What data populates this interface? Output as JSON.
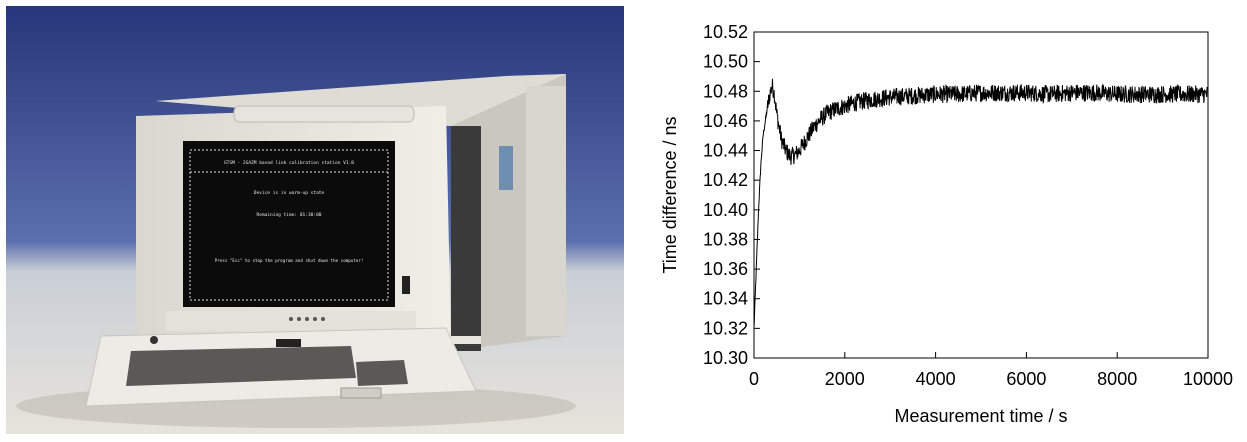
{
  "photo": {
    "screen_header": "GTSM - 2GAZM based link calibration station V1.0",
    "screen_status": "Device is in warm-up state",
    "screen_remaining_label": "Remaining time: 01:30:00",
    "screen_footer": "Press \"Esc\" to stop the program and shut down the computer!"
  },
  "chart_data": {
    "type": "line",
    "xlabel": "Measurement time / s",
    "ylabel": "Time difference / ns",
    "xlim": [
      0,
      10000
    ],
    "ylim": [
      10.3,
      10.52
    ],
    "xticks": [
      "0",
      "2000",
      "4000",
      "6000",
      "8000",
      "10000"
    ],
    "yticks": [
      "10.30",
      "10.32",
      "10.34",
      "10.36",
      "10.38",
      "10.40",
      "10.42",
      "10.44",
      "10.46",
      "10.48",
      "10.50",
      "10.52"
    ],
    "grid": false,
    "series": [
      {
        "color": "#000000",
        "x": [
          0,
          50,
          100,
          150,
          200,
          250,
          300,
          350,
          400,
          450,
          500,
          600,
          700,
          800,
          900,
          1000,
          1100,
          1200,
          1300,
          1400,
          1500,
          1600,
          1800,
          2000,
          2200,
          2500,
          3000,
          3500,
          4000,
          4500,
          5000,
          5500,
          6000,
          6500,
          7000,
          7500,
          8000,
          8500,
          9000,
          9500,
          10000
        ],
        "y": [
          10.32,
          10.36,
          10.4,
          10.43,
          10.45,
          10.46,
          10.47,
          10.478,
          10.484,
          10.478,
          10.465,
          10.448,
          10.44,
          10.436,
          10.437,
          10.44,
          10.445,
          10.45,
          10.455,
          10.459,
          10.462,
          10.465,
          10.468,
          10.47,
          10.472,
          10.474,
          10.476,
          10.477,
          10.478,
          10.478,
          10.479,
          10.479,
          10.479,
          10.478,
          10.479,
          10.479,
          10.478,
          10.478,
          10.478,
          10.478,
          10.478
        ],
        "noise": 0.006
      }
    ]
  }
}
